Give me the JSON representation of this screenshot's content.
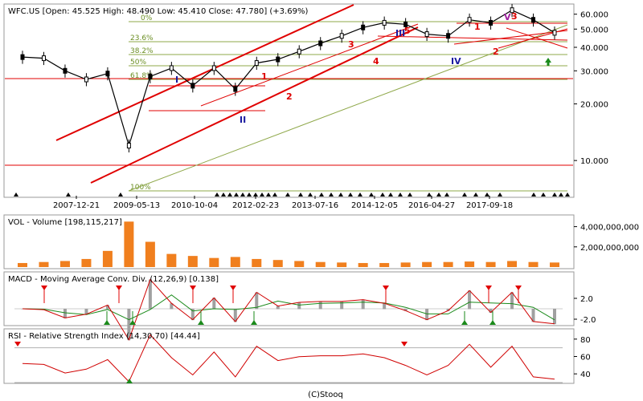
{
  "panels": {
    "price": {
      "header": "WFC.US [Open: 45.525  High: 48.490  Low: 45.410  Close: 47.780]  (+3.69%)",
      "y_ticks": [
        "60.000",
        "50.000",
        "40.000",
        "30.000",
        "20.000",
        "10.000"
      ],
      "fib_labels": [
        "0%",
        "23.6%",
        "38.2%",
        "50%",
        "61.8%",
        "100%"
      ],
      "wave_labels": [
        "1",
        "2",
        "3",
        "4",
        "5",
        "I",
        "II",
        "III",
        "IV",
        "V",
        "1",
        "2",
        "3"
      ]
    },
    "volume": {
      "header": "VOL - Volume [198,115,217]",
      "y_ticks": [
        "4,000,000,000",
        "2,000,000,000"
      ]
    },
    "macd": {
      "header": "MACD - Moving Average Conv. Div. (12,26,9) [0.138]",
      "y_ticks": [
        "2.0",
        "-2.0"
      ]
    },
    "rsi": {
      "header": "RSI - Relative Strength Index (14,30,70) [44.44]",
      "y_ticks": [
        "80",
        "60",
        "40"
      ]
    }
  },
  "x_ticks": [
    "2007-12-21",
    "2009-05-13",
    "2010-10-04",
    "2012-02-23",
    "2013-07-16",
    "2014-12-05",
    "2016-04-27",
    "2017-09-18"
  ],
  "footer": "(C)Stooq",
  "chart_data": {
    "type": "line",
    "title": "WFC.US",
    "y_scale": "log",
    "ylim": [
      6.5,
      66
    ],
    "x": [
      "2006-12",
      "2007-06",
      "2007-12",
      "2008-06",
      "2008-12",
      "2009-03",
      "2009-09",
      "2010-03",
      "2010-09",
      "2011-03",
      "2011-09",
      "2012-03",
      "2012-09",
      "2013-03",
      "2013-09",
      "2014-03",
      "2014-09",
      "2015-03",
      "2015-09",
      "2016-03",
      "2016-09",
      "2017-03",
      "2017-09",
      "2018-01",
      "2018-06",
      "2018-10"
    ],
    "series": [
      {
        "name": "Close",
        "values": [
          35.5,
          35,
          30,
          27,
          29,
          12,
          28,
          31,
          25,
          31,
          24,
          33,
          34.5,
          38,
          42,
          46,
          51,
          54,
          53,
          47,
          46,
          56,
          54,
          63,
          56,
          47.8
        ]
      }
    ],
    "volume_values_billions": [
      0.4,
      0.5,
      0.6,
      0.8,
      1.6,
      4.5,
      2.5,
      1.3,
      1.1,
      0.9,
      1.0,
      0.8,
      0.7,
      0.6,
      0.5,
      0.45,
      0.4,
      0.4,
      0.45,
      0.5,
      0.5,
      0.55,
      0.5,
      0.6,
      0.5,
      0.45
    ],
    "rsi": {
      "params": "14,30,70",
      "last": 44.44,
      "levels": [
        30,
        70
      ],
      "ylim": [
        30,
        90
      ]
    },
    "macd": {
      "params": "12,26,9",
      "last": 0.138
    }
  },
  "colors": {
    "trend_red": "#e00000",
    "fib_green": "#8fa84a",
    "candle": "#000000",
    "volume_bar": "#f07f1e",
    "macd_line": "#d00000",
    "signal_line": "#1a8a1a",
    "hist": "#a0a0a0",
    "rsi_line": "#d00000",
    "sell_marker": "#e00000",
    "buy_marker": "#1a8a1a"
  }
}
